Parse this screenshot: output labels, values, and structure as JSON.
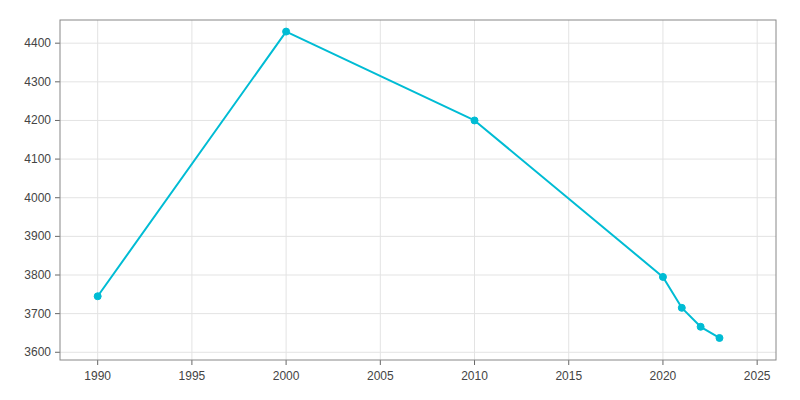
{
  "chart_data": {
    "type": "line",
    "x": [
      1990,
      2000,
      2010,
      2020,
      2021,
      2022,
      2023
    ],
    "values": [
      3745,
      4430,
      4200,
      3795,
      3715,
      3666,
      3637
    ],
    "color": "#00bcd4",
    "marker": "circle",
    "xlim": [
      1988,
      2026
    ],
    "ylim": [
      3580,
      4460
    ],
    "xticks": [
      1990,
      1995,
      2000,
      2005,
      2010,
      2015,
      2020,
      2025
    ],
    "yticks": [
      3600,
      3700,
      3800,
      3900,
      4000,
      4100,
      4200,
      4300,
      4400
    ],
    "grid": true
  }
}
